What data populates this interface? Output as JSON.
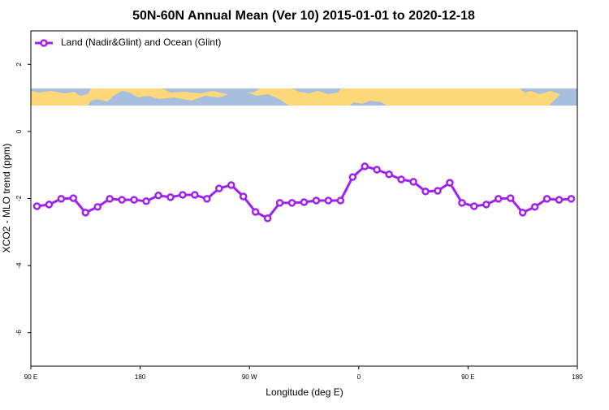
{
  "chart_data": {
    "type": "line",
    "title": "50N-60N Annual Mean (Ver 10)   2015-01-01 to 2020-12-18",
    "x_label": "Longitude (deg E)",
    "y_label": "XCO2 - MLO trend (ppm)",
    "x": [
      95,
      105,
      115,
      125,
      135,
      145,
      155,
      165,
      175,
      185,
      195,
      205,
      215,
      225,
      235,
      245,
      255,
      265,
      275,
      285,
      295,
      305,
      315,
      325,
      335,
      345,
      355,
      365,
      375,
      385,
      395,
      405,
      415,
      425,
      435,
      445,
      455,
      465,
      475,
      485,
      495,
      505,
      515,
      525,
      535
    ],
    "series": [
      {
        "name": "Land (Nadir&Glint) and Ocean (Glint)",
        "color": "#a020f0",
        "values": [
          -2.23,
          -2.18,
          -2.01,
          -1.99,
          -2.42,
          -2.25,
          -2.01,
          -2.04,
          -2.04,
          -2.08,
          -1.91,
          -1.96,
          -1.89,
          -1.89,
          -2.01,
          -1.7,
          -1.6,
          -1.94,
          -2.4,
          -2.59,
          -2.13,
          -2.13,
          -2.11,
          -2.06,
          -2.06,
          -2.06,
          -1.36,
          -1.04,
          -1.14,
          -1.28,
          -1.43,
          -1.5,
          -1.79,
          -1.77,
          -1.53,
          -2.13,
          -2.23,
          -2.18,
          -2.01,
          -1.99,
          -2.42,
          -2.25,
          -2.01,
          -2.04,
          -2.01
        ]
      }
    ],
    "xlim": [
      90,
      540
    ],
    "xticks": [
      {
        "value": 90,
        "label": "90 E"
      },
      {
        "value": 180,
        "label": "180"
      },
      {
        "value": 270,
        "label": "90 W"
      },
      {
        "value": 360,
        "label": "0"
      },
      {
        "value": 450,
        "label": "90 E"
      },
      {
        "value": 540,
        "label": "180"
      }
    ],
    "ylim": [
      -7,
      3
    ],
    "yticks": [
      2,
      0,
      -2,
      -4,
      -6
    ],
    "legend": "top-left"
  }
}
